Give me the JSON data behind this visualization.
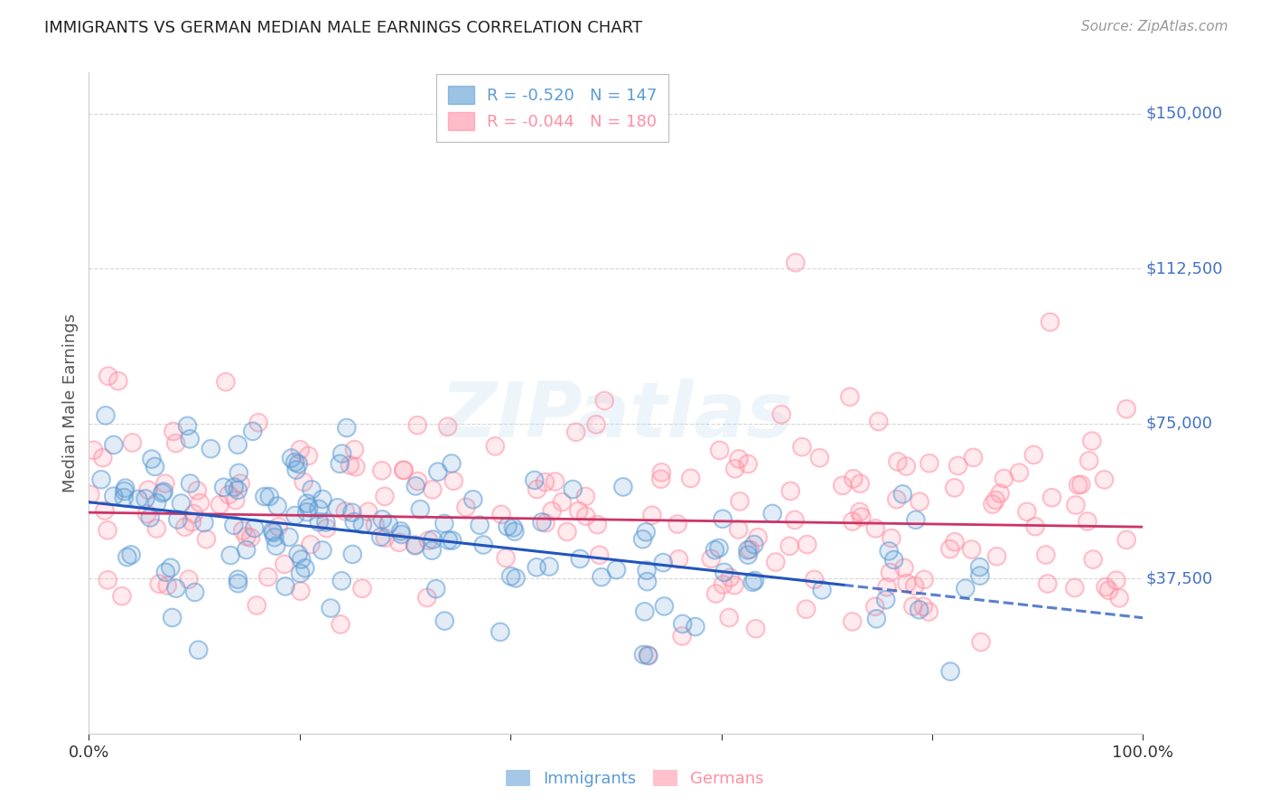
{
  "title": "IMMIGRANTS VS GERMAN MEDIAN MALE EARNINGS CORRELATION CHART",
  "source": "Source: ZipAtlas.com",
  "ylabel": "Median Male Earnings",
  "yticks": [
    0,
    37500,
    75000,
    112500,
    150000
  ],
  "ytick_labels": [
    "",
    "$37,500",
    "$75,000",
    "$112,500",
    "$150,000"
  ],
  "ylim": [
    0,
    160000
  ],
  "xlim": [
    0.0,
    1.0
  ],
  "blue_color": "#5b9bd5",
  "pink_color": "#ff8fa3",
  "trend_blue": "#2255bb",
  "trend_pink": "#cc3366",
  "watermark": "ZIPatlas",
  "blue_R": -0.52,
  "blue_N": 147,
  "pink_R": -0.044,
  "pink_N": 180,
  "blue_intercept": 56000,
  "blue_slope": -28000,
  "pink_intercept": 53500,
  "pink_slope": -3500,
  "background": "#ffffff",
  "grid_color": "#cccccc",
  "axis_label_color": "#555555",
  "ytick_color": "#4472c4",
  "source_color": "#888888"
}
